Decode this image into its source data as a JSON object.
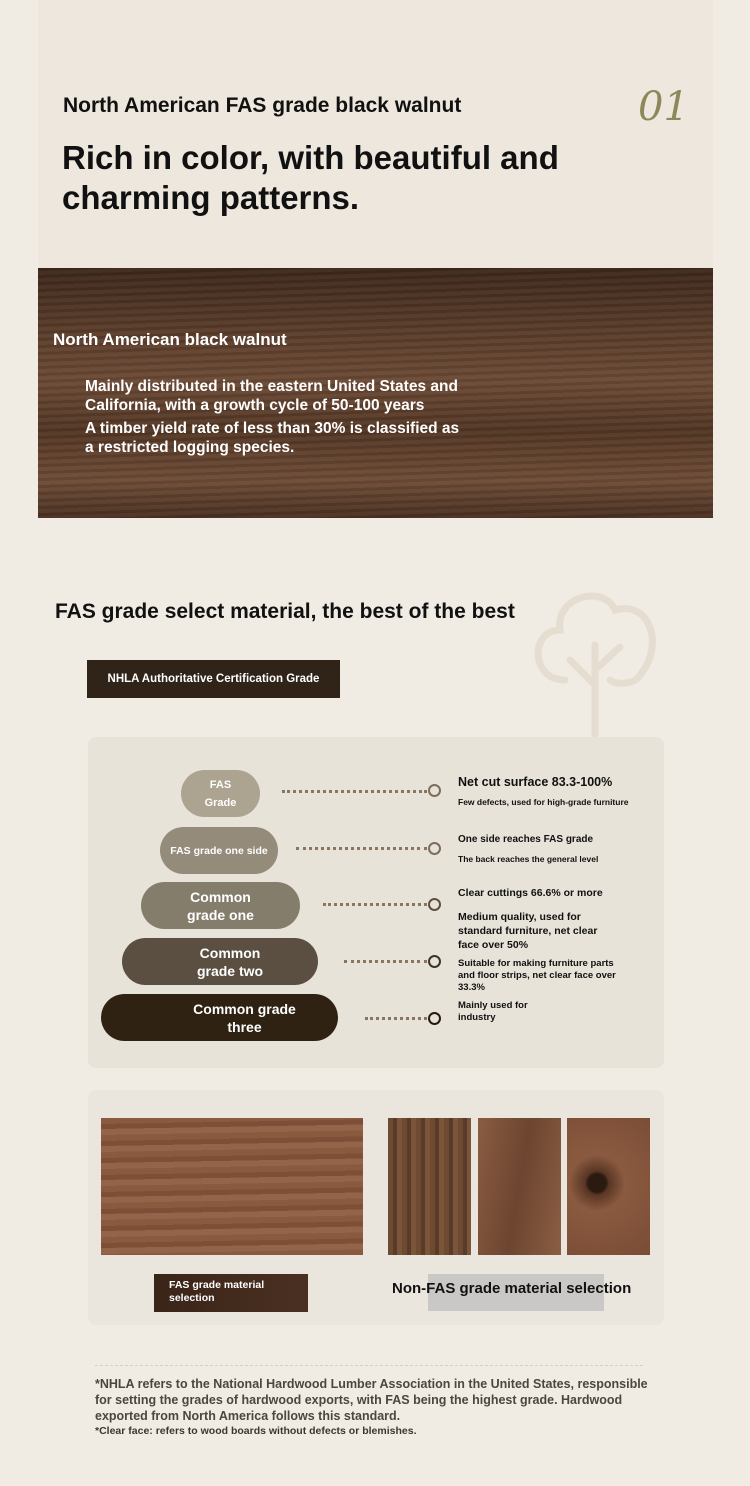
{
  "header": {
    "subtitle": "North American FAS grade black walnut",
    "number": "01",
    "headline": "Rich in color, with beautiful and charming patterns."
  },
  "walnut": {
    "title": "North American black walnut",
    "line1": "Mainly distributed in the eastern United States and California, with a growth cycle of 50-100 years",
    "line2": "A timber yield rate of less than 30% is classified as a restricted logging species."
  },
  "fas": {
    "heading": "FAS grade select material, the best of the best",
    "badge": "NHLA Authoritative Certification Grade",
    "grades": [
      {
        "label": "FAS Grade",
        "color": "#aca390"
      },
      {
        "label": "FAS grade one side",
        "color": "#948b7a"
      },
      {
        "label": "Common grade one",
        "color": "#857d6c"
      },
      {
        "label": "Common grade two",
        "color": "#5a4f41"
      },
      {
        "label": "Common grade three",
        "color": "#2f2212"
      }
    ],
    "descriptions": [
      "Net cut surface 83.3-100%",
      "Few defects, used for high-grade furniture",
      "One side reaches FAS grade",
      "The back reaches the general level",
      "Clear cuttings 66.6% or more",
      "Medium quality, used for standard furniture, net clear face over 50%",
      "Suitable for making furniture parts and floor strips, net clear face over 33.3%",
      "Mainly used for industry"
    ]
  },
  "comparison": {
    "fas_label": "FAS grade material selection",
    "non_fas_label": "Non-FAS grade material selection"
  },
  "footnotes": {
    "nhla": "*NHLA refers to the National Hardwood Lumber Association in the United States, responsible for setting the grades of hardwood exports, with FAS being the highest grade. Hardwood exported from North America follows this standard.",
    "clear_face": "*Clear face: refers to wood boards without defects or blemishes."
  }
}
